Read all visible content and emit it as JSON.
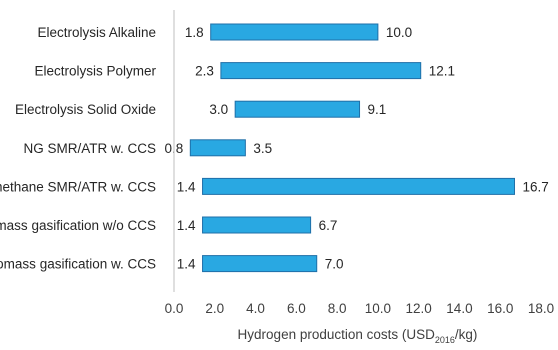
{
  "chart_data": {
    "type": "bar",
    "orientation": "horizontal-range",
    "categories": [
      "Electrolysis Alkaline",
      "Electrolysis Polymer",
      "Electrolysis Solid Oxide",
      "NG SMR/ATR w. CCS",
      "Biomethane SMR/ATR w. CCS",
      "Biomass gasification w/o CCS",
      "Biomass gasification w. CCS"
    ],
    "series": [
      {
        "min": [
          1.8,
          2.3,
          3.0,
          0.8,
          1.4,
          1.4,
          1.4
        ],
        "max": [
          10.0,
          12.1,
          9.1,
          3.5,
          16.7,
          6.7,
          7.0
        ]
      }
    ],
    "min_labels": [
      "1.8",
      "2.3",
      "3.0",
      "0.8",
      "1.4",
      "1.4",
      "1.4"
    ],
    "max_labels": [
      "10.0",
      "12.1",
      "9.1",
      "3.5",
      "16.7",
      "6.7",
      "7.0"
    ],
    "xlabel": {
      "main": "Hydrogen production costs (USD",
      "sub": "2016",
      "tail": "/kg)"
    },
    "xlim": [
      0,
      18
    ],
    "xticks": [
      "0.0",
      "2.0",
      "4.0",
      "6.0",
      "8.0",
      "10.0",
      "12.0",
      "14.0",
      "16.0",
      "18.0"
    ],
    "grid": false,
    "colors": {
      "bar_fill": "#29a8e2",
      "bar_stroke": "#1f6fa8",
      "axis": "#bfbfbf"
    }
  }
}
